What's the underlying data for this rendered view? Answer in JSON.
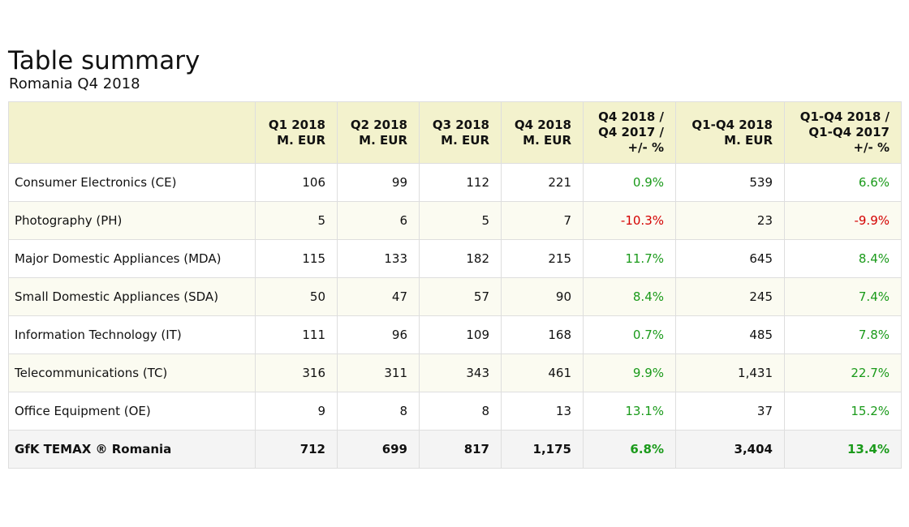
{
  "title": "Table summary",
  "subtitle": "Romania Q4 2018",
  "colors": {
    "positive": "#1a9a1a",
    "negative": "#d40000",
    "header_bg": "#f3f2cd"
  },
  "headers": [
    {
      "lines": [
        "",
        ""
      ]
    },
    {
      "lines": [
        "Q1 2018",
        "M. EUR"
      ]
    },
    {
      "lines": [
        "Q2 2018",
        "M. EUR"
      ]
    },
    {
      "lines": [
        "Q3 2018",
        "M. EUR"
      ]
    },
    {
      "lines": [
        "Q4 2018",
        "M. EUR"
      ]
    },
    {
      "lines": [
        "Q4 2018 /",
        "Q4 2017 /",
        "+/- %"
      ]
    },
    {
      "lines": [
        "Q1-Q4 2018",
        "M. EUR"
      ]
    },
    {
      "lines": [
        "Q1-Q4 2018 /",
        "Q1-Q4 2017",
        "+/- %"
      ]
    }
  ],
  "rows": [
    {
      "category": "Consumer Electronics (CE)",
      "q1": "106",
      "q2": "99",
      "q3": "112",
      "q4": "221",
      "q4_change": "0.9%",
      "q4_change_sign": "pos",
      "full_year": "539",
      "full_year_change": "6.6%",
      "full_year_change_sign": "pos"
    },
    {
      "category": "Photography (PH)",
      "q1": "5",
      "q2": "6",
      "q3": "5",
      "q4": "7",
      "q4_change": "-10.3%",
      "q4_change_sign": "neg",
      "full_year": "23",
      "full_year_change": "-9.9%",
      "full_year_change_sign": "neg"
    },
    {
      "category": "Major Domestic Appliances (MDA)",
      "q1": "115",
      "q2": "133",
      "q3": "182",
      "q4": "215",
      "q4_change": "11.7%",
      "q4_change_sign": "pos",
      "full_year": "645",
      "full_year_change": "8.4%",
      "full_year_change_sign": "pos"
    },
    {
      "category": "Small Domestic Appliances (SDA)",
      "q1": "50",
      "q2": "47",
      "q3": "57",
      "q4": "90",
      "q4_change": "8.4%",
      "q4_change_sign": "pos",
      "full_year": "245",
      "full_year_change": "7.4%",
      "full_year_change_sign": "pos"
    },
    {
      "category": "Information Technology (IT)",
      "q1": "111",
      "q2": "96",
      "q3": "109",
      "q4": "168",
      "q4_change": "0.7%",
      "q4_change_sign": "pos",
      "full_year": "485",
      "full_year_change": "7.8%",
      "full_year_change_sign": "pos"
    },
    {
      "category": "Telecommunications (TC)",
      "q1": "316",
      "q2": "311",
      "q3": "343",
      "q4": "461",
      "q4_change": "9.9%",
      "q4_change_sign": "pos",
      "full_year": "1,431",
      "full_year_change": "22.7%",
      "full_year_change_sign": "pos"
    },
    {
      "category": "Office Equipment (OE)",
      "q1": "9",
      "q2": "8",
      "q3": "8",
      "q4": "13",
      "q4_change": "13.1%",
      "q4_change_sign": "pos",
      "full_year": "37",
      "full_year_change": "15.2%",
      "full_year_change_sign": "pos"
    }
  ],
  "total": {
    "category": "GfK TEMAX ® Romania",
    "q1": "712",
    "q2": "699",
    "q3": "817",
    "q4": "1,175",
    "q4_change": "6.8%",
    "q4_change_sign": "pos",
    "full_year": "3,404",
    "full_year_change": "13.4%",
    "full_year_change_sign": "pos"
  }
}
